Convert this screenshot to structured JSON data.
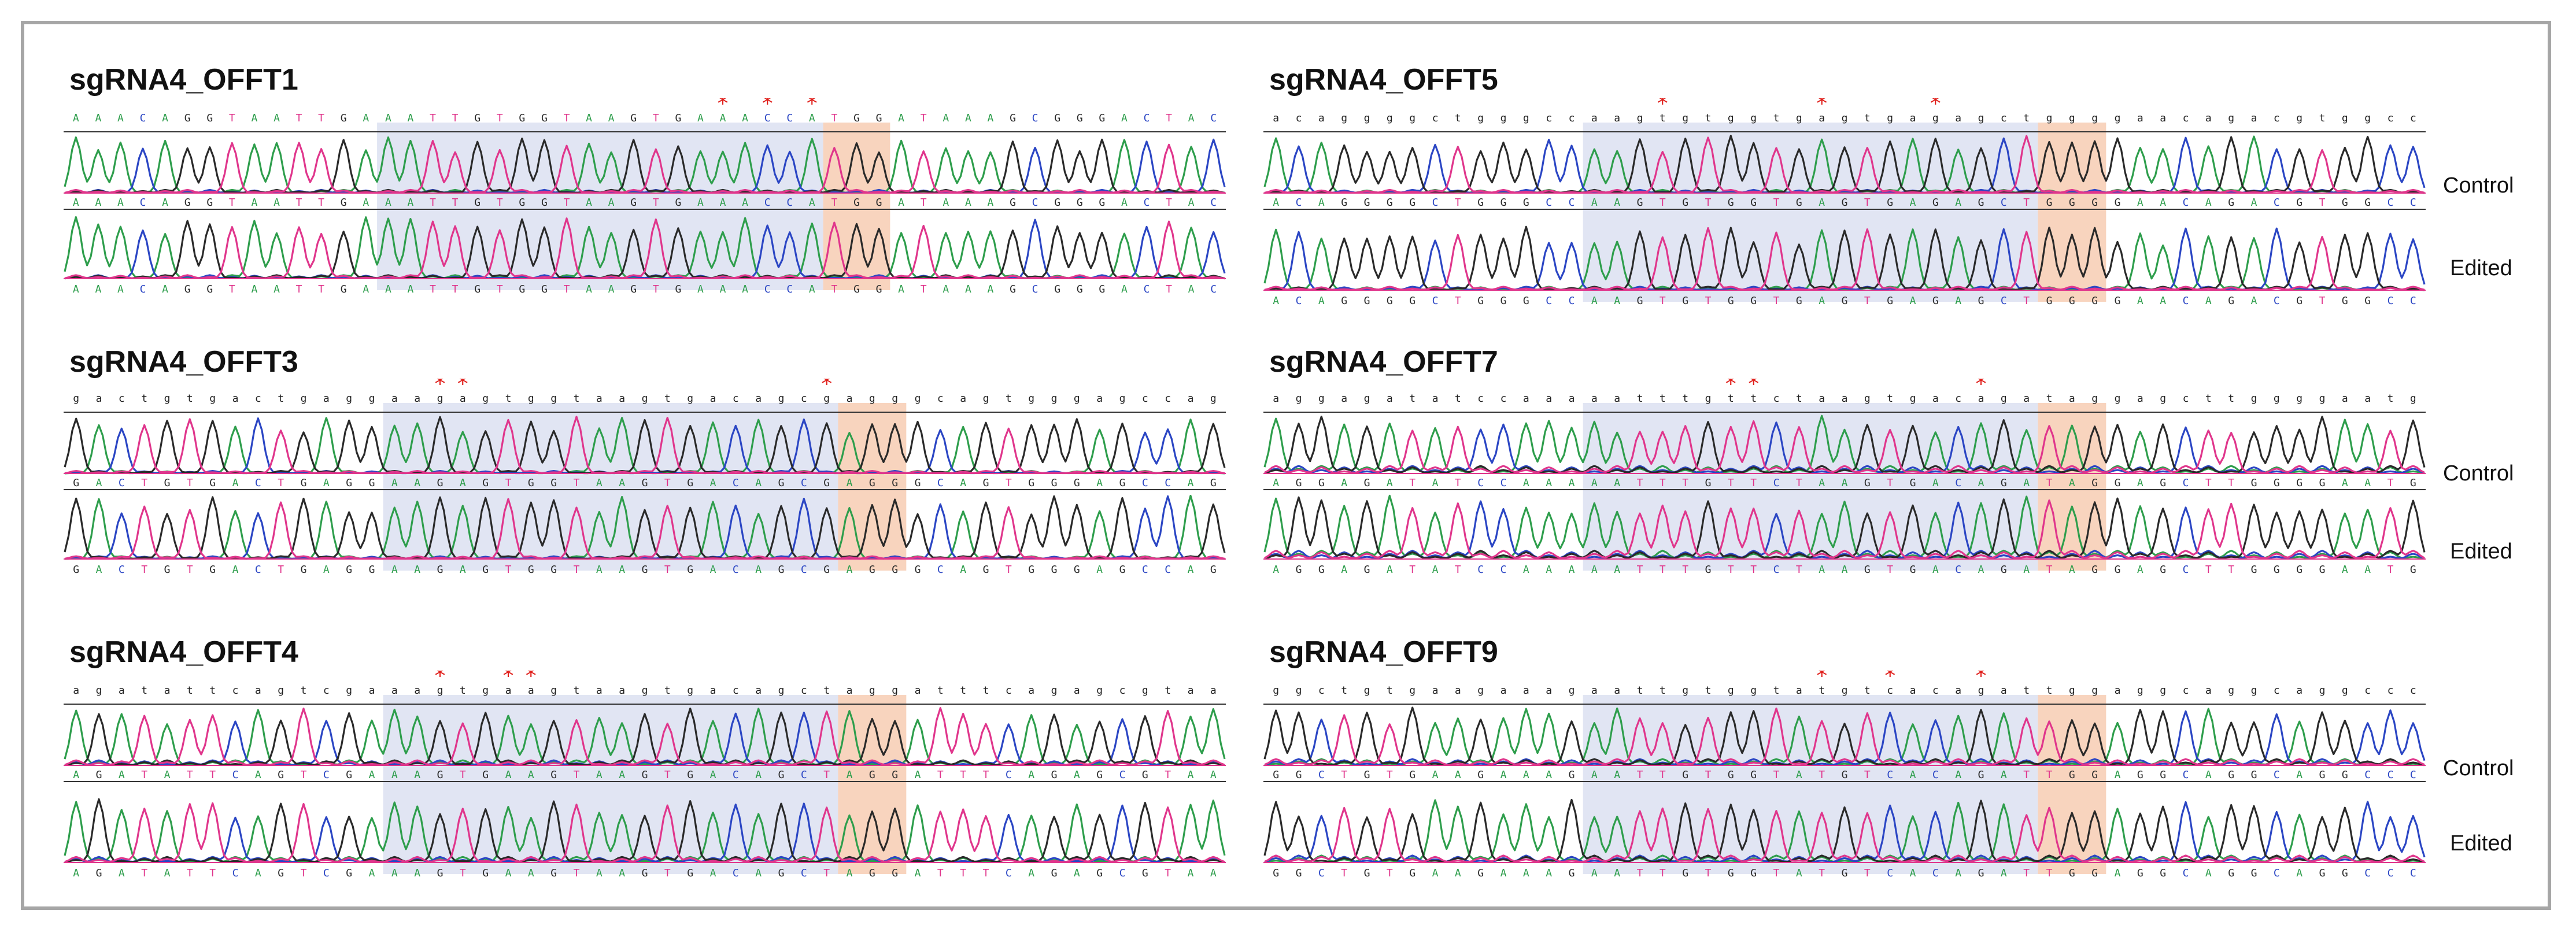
{
  "figure": {
    "palette": {
      "A": "#2e9e4c",
      "C": "#2b46c4",
      "G": "#2a2a2a",
      "T": "#e0368c"
    },
    "highlight": {
      "protospacer": "#c9d0ea",
      "pam": "#f5c6a8",
      "mismatch_star": "#e0201c"
    },
    "row_labels": {
      "control": "Control",
      "edited": "Edited"
    }
  },
  "panels": [
    {
      "id": "offt1",
      "title": "sgRNA4_OFFT1",
      "ref_seq": "AAACAGGTAATTGAAATTGTGGTAAGTGAAACCATGGATAAAGCGGGACTAC",
      "control_calls": "AAACAGGTAATTGAAATTGTGGTAAGTGAAACCATGGATAAAGCGGGACTAC",
      "edited_calls": "AAACAGGTAATTGAAATTGTGGTAAGTGAAACCATGGATAAAGCGGGACTAC",
      "ref_lowercase": false,
      "protospacer": [
        14,
        34
      ],
      "pam": [
        34,
        37
      ],
      "mismatch_positions": [
        29,
        31,
        33
      ],
      "show_labels": false,
      "noise": 0.05
    },
    {
      "id": "offt5",
      "title": "sgRNA4_OFFT5",
      "ref_seq": "ACAGGGGCTGGGCCAAGTGTGGTGAGTGAGAGCTGGGGAACAGACGTGGCC",
      "control_calls": "ACAGGGGCTGGGCCAAGTGTGGTGAGTGAGAGCTGGGGAACAGACGTGGCC",
      "edited_calls": "ACAGGGGCTGGGCCAAGTGTGGTGAGTGAGAGCTGGGGAACAGACGTGGCC",
      "ref_lowercase": true,
      "protospacer": [
        14,
        34
      ],
      "pam": [
        34,
        37
      ],
      "mismatch_positions": [
        17,
        24,
        29
      ],
      "show_labels": true,
      "noise": 0.05
    },
    {
      "id": "offt3",
      "title": "sgRNA4_OFFT3",
      "ref_seq": "GACTGTGACTGAGGAAGAGTGGTAAGTGACAGCGAGGGCAGTGGGAGCCAG",
      "control_calls": "GACTGTGACTGAGGAAGAGTGGTAAGTGACAGCGAGGGCAGTGGGAGCCAG",
      "edited_calls": "GACTGTGACTGAGGAAGAGTGGTAAGTGACAGCGAGGGCAGTGGGAGCCAG",
      "ref_lowercase": true,
      "protospacer": [
        14,
        34
      ],
      "pam": [
        34,
        37
      ],
      "mismatch_positions": [
        16,
        17,
        33
      ],
      "show_labels": false,
      "noise": 0.04
    },
    {
      "id": "offt7",
      "title": "sgRNA4_OFFT7",
      "ref_seq": "AGGAGATATCCAAAAATTTGTTCTAAGTGACAGATAGGAGCTTGGGGAATG",
      "control_calls": "AGGAGATATCCAAAAATTTGTTCTAAGTGACAGATAGGAGCTTGGGGAATG",
      "edited_calls": "AGGAGATATCCAAAAATTTGTTCTAAGTGACAGATAGGAGCTTGGGGAATG",
      "ref_lowercase": true,
      "protospacer": [
        14,
        34
      ],
      "pam": [
        34,
        37
      ],
      "mismatch_positions": [
        20,
        21,
        31
      ],
      "show_labels": true,
      "noise": 0.12
    },
    {
      "id": "offt4",
      "title": "sgRNA4_OFFT4",
      "ref_seq": "AGATATTCAGTCGAAAGTGAAGTAAGTGACAGCTAGGATTTCAGAGCGTAA",
      "control_calls": "AGATATTCAGTCGAAAGTGAAGTAAGTGACAGCTAGGATTTCAGAGCGTAA",
      "edited_calls": "AGATATTCAGTCGAAAGTGAAGTAAGTGACAGCTAGGATTTCAGAGCGTAA",
      "ref_lowercase": true,
      "protospacer": [
        14,
        34
      ],
      "pam": [
        34,
        37
      ],
      "mismatch_positions": [
        16,
        19,
        20
      ],
      "show_labels": false,
      "noise": 0.08
    },
    {
      "id": "offt9",
      "title": "sgRNA4_OFFT9",
      "ref_seq": "GGCTGTGAAGAAAGAATTGTGGTATGTCACAGATTGGAGGCAGGCAGGCCC",
      "control_calls": "GGCTGTGAAGAAAGAATTGTGGTATGTCACAGATTGGAGGCAGGCAGGCCC",
      "edited_calls": "GGCTGTGAAGAAAGAATTGTGGTATGTCACAGATTGGAGGCAGGCAGGCCC",
      "ref_lowercase": true,
      "protospacer": [
        14,
        34
      ],
      "pam": [
        34,
        37
      ],
      "mismatch_positions": [
        24,
        27,
        31
      ],
      "show_labels": true,
      "noise": 0.1
    }
  ]
}
